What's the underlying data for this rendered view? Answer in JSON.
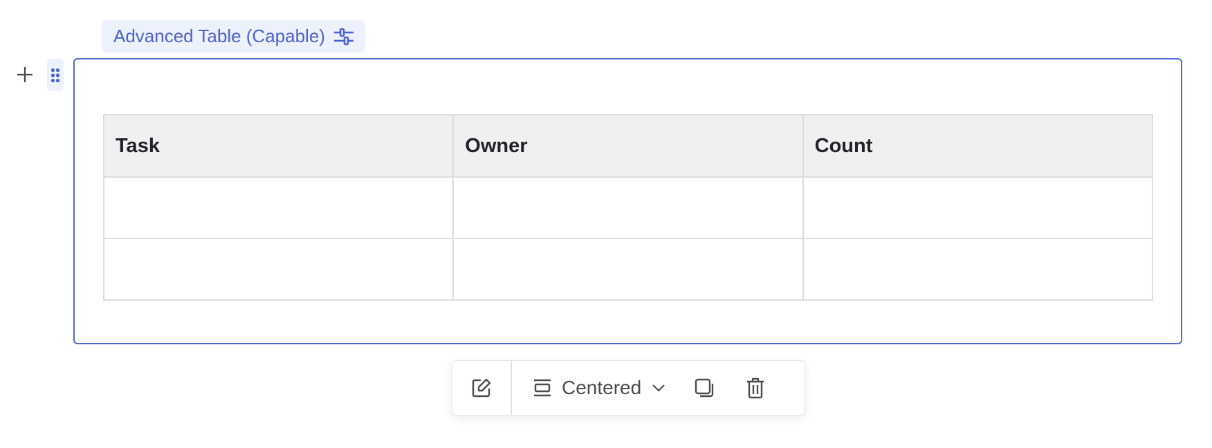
{
  "block_label": {
    "text": "Advanced Table (Capable)",
    "icon": "sliders-icon"
  },
  "table": {
    "headers": [
      "Task",
      "Owner",
      "Count"
    ],
    "rows": [
      [
        "",
        "",
        ""
      ],
      [
        "",
        "",
        ""
      ]
    ]
  },
  "toolbar": {
    "edit_icon": "edit-icon",
    "alignment": "Centered",
    "duplicate_icon": "copy-icon",
    "delete_icon": "trash-icon"
  },
  "colors": {
    "accent": "#4f68d3",
    "accent_bg": "#edf1fb",
    "header_bg": "#eff0f2"
  }
}
